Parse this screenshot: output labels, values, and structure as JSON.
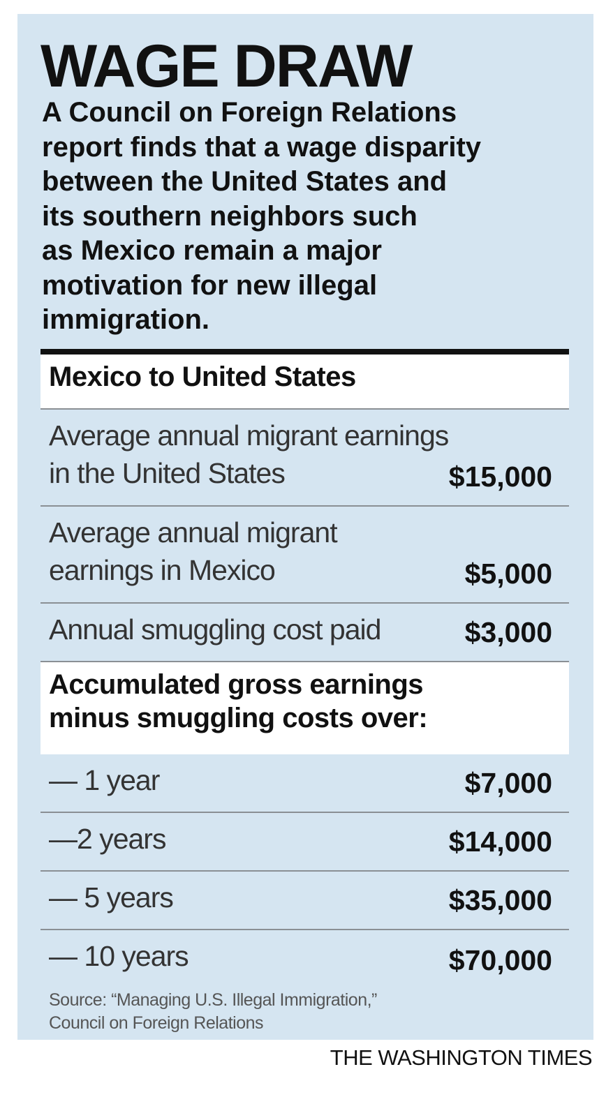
{
  "title": "WAGE DRAW",
  "description": [
    "A Council on Foreign Relations",
    "report finds that a wage disparity",
    "between the United States and",
    "its southern neighbors such",
    "as Mexico remain a major",
    "motivation for new illegal",
    "immigration."
  ],
  "sections": [
    {
      "heading": [
        "Mexico to United States"
      ],
      "rows": [
        {
          "label": [
            "Average annual migrant earnings",
            "in the United States"
          ],
          "value": "$15,000"
        },
        {
          "label": [
            "Average annual migrant",
            "earnings in Mexico"
          ],
          "value": "$5,000"
        },
        {
          "label": [
            "Annual smuggling cost paid"
          ],
          "value": "$3,000"
        }
      ]
    },
    {
      "heading": [
        "Accumulated gross earnings",
        "minus smuggling costs over:"
      ],
      "rows": [
        {
          "label": [
            "— 1 year"
          ],
          "value": "$7,000"
        },
        {
          "label": [
            "—2 years"
          ],
          "value": "$14,000"
        },
        {
          "label": [
            "— 5 years"
          ],
          "value": "$35,000"
        },
        {
          "label": [
            "— 10 years"
          ],
          "value": "$70,000"
        }
      ]
    }
  ],
  "source": [
    "Source: “Managing U.S. Illegal Immigration,”",
    "Council on Foreign Relations"
  ],
  "credit": "THE WASHINGTON TIMES"
}
